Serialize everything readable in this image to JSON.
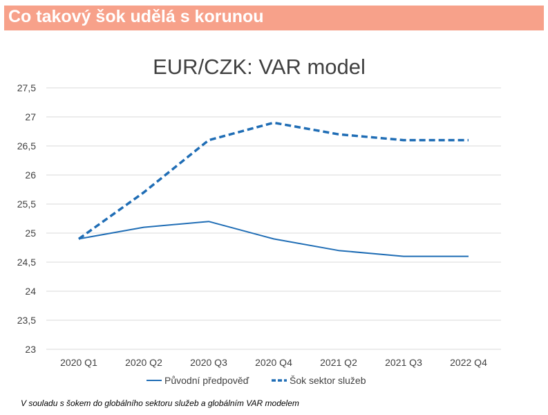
{
  "header": {
    "title": "Co takový šok udělá s korunou"
  },
  "footnote": "V souladu s šokem do globálního sektoru služeb a globálním VAR modelem",
  "colors": {
    "header_bg": "#f7a18a",
    "series_color": "#1f6db5",
    "grid": "#d9d9d9",
    "text": "#404040"
  },
  "chart_data": {
    "type": "line",
    "title": "EUR/CZK: VAR model",
    "xlabel": "",
    "ylabel": "",
    "categories": [
      "2020 Q1",
      "2020 Q2",
      "2020 Q3",
      "2020 Q4",
      "2021 Q2",
      "2021 Q3",
      "2022 Q4"
    ],
    "ylim": [
      23,
      27.5
    ],
    "yticks": [
      "23",
      "23,5",
      "24",
      "24,5",
      "25",
      "25,5",
      "26",
      "26,5",
      "27",
      "27,5"
    ],
    "grid": true,
    "legend_position": "bottom",
    "series": [
      {
        "name": "Původní předpověď",
        "style": "solid",
        "values": [
          24.9,
          25.1,
          25.2,
          24.9,
          24.7,
          24.6,
          24.6
        ]
      },
      {
        "name": "Šok sektor služeb",
        "style": "dashed",
        "values": [
          24.9,
          25.7,
          26.6,
          26.9,
          26.7,
          26.6,
          26.6
        ]
      }
    ]
  }
}
